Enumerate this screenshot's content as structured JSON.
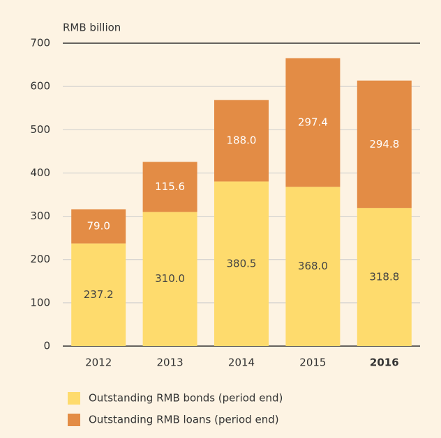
{
  "chart_data": {
    "type": "stacked_bar",
    "axis_label": "RMB billion",
    "categories": [
      "2012",
      "2013",
      "2014",
      "2015",
      "2016"
    ],
    "bold_category_index": 4,
    "series": [
      {
        "name": "Outstanding RMB bonds (period end)",
        "color": "#fedb6d",
        "label_color": "#444444",
        "values": [
          237.2,
          310,
          380.5,
          368,
          318.8
        ],
        "value_labels": [
          "237.2",
          "310.0",
          "380.5",
          "368.0",
          "318.8"
        ]
      },
      {
        "name": "Outstanding RMB loans (period end)",
        "color": "#e38c45",
        "label_color": "#ffffff",
        "values": [
          79,
          115.6,
          188,
          297.4,
          294.8
        ],
        "value_labels": [
          "79.0",
          "115.6",
          "188.0",
          "297.4",
          "294.8"
        ]
      }
    ],
    "ylim": [
      0,
      700
    ],
    "yticks": [
      0,
      100,
      200,
      300,
      400,
      500,
      600,
      700
    ],
    "grid": true
  }
}
